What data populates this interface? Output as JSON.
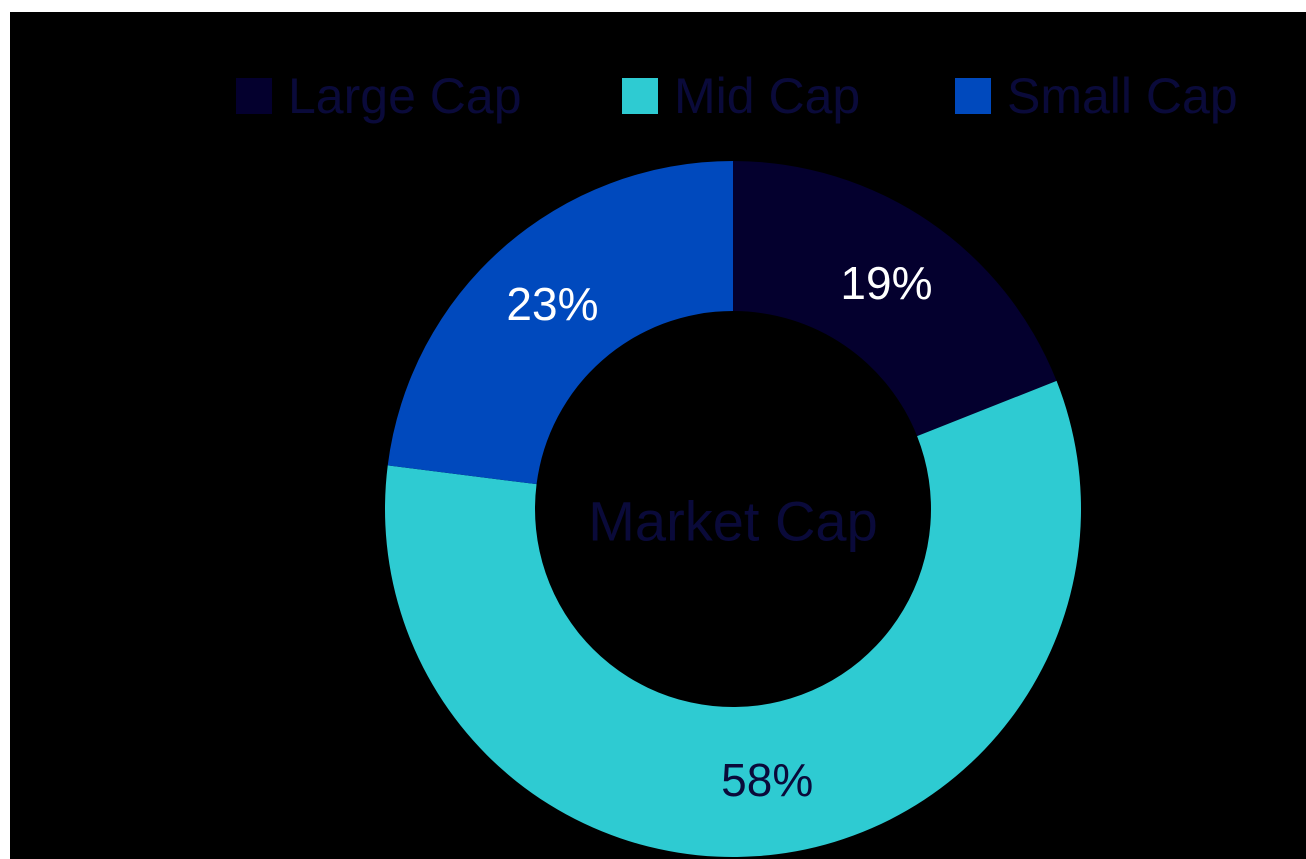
{
  "chart_data": {
    "type": "pie",
    "donut": true,
    "center_label": "Market Cap",
    "categories": [
      "Large Cap",
      "Mid Cap",
      "Small Cap"
    ],
    "values": [
      19,
      58,
      23
    ],
    "data_labels": [
      "19%",
      "58%",
      "23%"
    ],
    "legend_position": "top-right",
    "colors": {
      "Large Cap": "#04002e",
      "Mid Cap": "#2ecbd2",
      "Small Cap": "#0049bd"
    },
    "text_colors": {
      "legend": "#0a0a3a",
      "center": "#0a0a3a",
      "label_on_dark": "#ffffff",
      "label_on_light": "#0a0a3a"
    },
    "background": "#000000"
  }
}
